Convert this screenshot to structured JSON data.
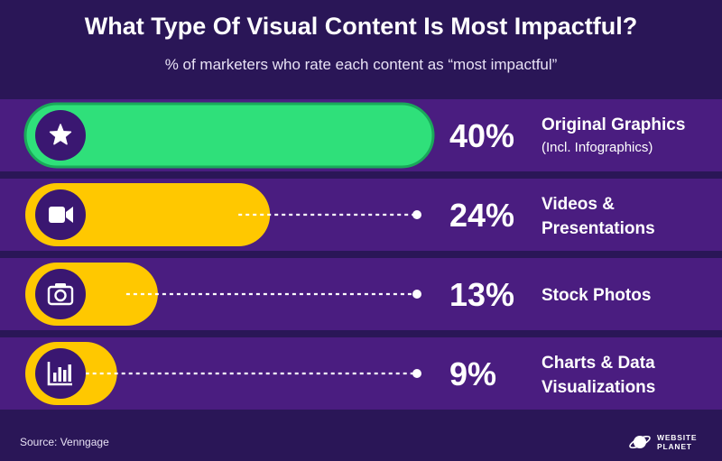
{
  "chart_data": {
    "type": "bar",
    "title": "What Type Of Visual Content Is Most Impactful?",
    "subtitle": "% of marketers who rate each content as “most impactful”",
    "unit": "%",
    "xlim": [
      0,
      40
    ],
    "categories": [
      {
        "label_line1": "Original Graphics",
        "label_line2": "(Incl. Infographics)",
        "value": 40,
        "value_label": "40%",
        "icon": "star-icon",
        "color": "#2fe07a"
      },
      {
        "label_line1": "Videos &",
        "label_line2": "Presentations",
        "value": 24,
        "value_label": "24%",
        "icon": "video-camera-icon",
        "color": "#ffc800"
      },
      {
        "label_line1": "Stock Photos",
        "label_line2": "",
        "value": 13,
        "value_label": "13%",
        "icon": "camera-icon",
        "color": "#ffc800"
      },
      {
        "label_line1": "Charts & Data",
        "label_line2": "Visualizations",
        "value": 9,
        "value_label": "9%",
        "icon": "bar-chart-icon",
        "color": "#ffc800"
      }
    ]
  },
  "footer": {
    "source": "Source: Venngage",
    "brand_line1": "WEBSITE",
    "brand_line2": "PLANET"
  },
  "colors": {
    "background": "#2a1657",
    "row_band": "#4a1d80",
    "row_gap": "#2a1657",
    "icon_circle": "#3a1771",
    "green_bar": "#2fe07a",
    "green_bar_edge": "#1aa95a",
    "yellow_bar": "#ffc800"
  }
}
